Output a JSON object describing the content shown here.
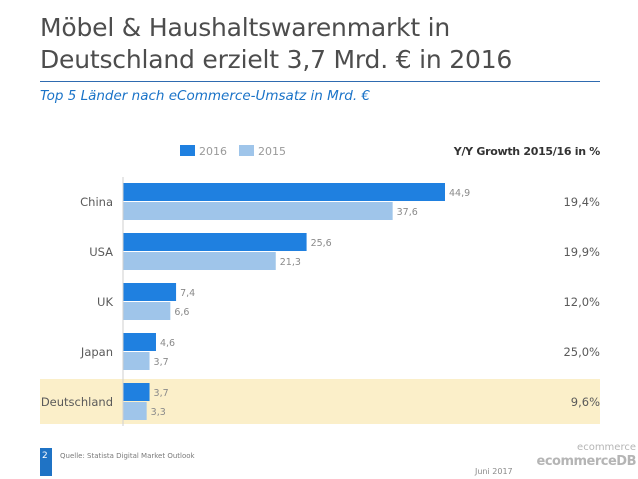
{
  "header": {
    "title_line1": "Möbel & Haushaltswarenmarkt in",
    "title_line2": "Deutschland erzielt 3,7 Mrd. € in 2016",
    "subtitle": "Top 5 Länder nach eCommerce-Umsatz in Mrd. €"
  },
  "chart_data": {
    "type": "bar",
    "orientation": "horizontal",
    "title": "Top 5 Länder nach eCommerce-Umsatz in Mrd. €",
    "categories": [
      "China",
      "USA",
      "UK",
      "Japan",
      "Deutschland"
    ],
    "series": [
      {
        "name": "2016",
        "values": [
          44.9,
          25.6,
          7.4,
          4.6,
          3.7
        ],
        "labels": [
          "44,9",
          "25,6",
          "7,4",
          "4,6",
          "3,7"
        ],
        "color": "#1f80e0"
      },
      {
        "name": "2015",
        "values": [
          37.6,
          21.3,
          6.6,
          3.7,
          3.3
        ],
        "labels": [
          "37,6",
          "21,3",
          "6,6",
          "3,7",
          "3,3"
        ],
        "color": "#9fc5ea"
      }
    ],
    "growth_header": "Y/Y Growth 2015/16 in %",
    "growth": [
      "19,4%",
      "19,9%",
      "12,0%",
      "25,0%",
      "9,6%"
    ],
    "highlight_category": "Deutschland",
    "highlight_color": "#fbefc9",
    "xlim": [
      0,
      50
    ],
    "legend_position": "top"
  },
  "footer": {
    "page_number": "2",
    "source": "Quelle: Statista Digital Market Outlook",
    "date": "Juni 2017",
    "logo_line1": "ecommerce",
    "logo_line2": "ecommerceDB"
  }
}
